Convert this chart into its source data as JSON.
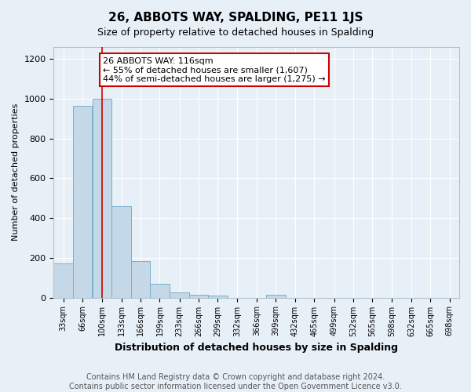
{
  "title": "26, ABBOTS WAY, SPALDING, PE11 1JS",
  "subtitle": "Size of property relative to detached houses in Spalding",
  "xlabel": "Distribution of detached houses by size in Spalding",
  "ylabel": "Number of detached properties",
  "bin_left_edges": [
    33,
    66,
    100,
    133,
    166,
    199,
    233,
    266,
    299,
    332,
    366,
    399,
    432,
    465,
    499,
    532,
    565,
    598,
    632,
    665,
    698
  ],
  "bar_heights": [
    170,
    965,
    1000,
    460,
    185,
    70,
    25,
    15,
    10,
    0,
    0,
    15,
    0,
    0,
    0,
    0,
    0,
    0,
    0,
    0
  ],
  "bar_color": "#c5d8e8",
  "bar_edge_color": "#7ab0cc",
  "vline_x": 116,
  "vline_color": "#cc0000",
  "annotation_text": "26 ABBOTS WAY: 116sqm\n← 55% of detached houses are smaller (1,607)\n44% of semi-detached houses are larger (1,275) →",
  "annotation_box_facecolor": "#ffffff",
  "annotation_box_edgecolor": "#cc0000",
  "ylim": [
    0,
    1260
  ],
  "yticks": [
    0,
    200,
    400,
    600,
    800,
    1000,
    1200
  ],
  "tick_labels": [
    "33sqm",
    "66sqm",
    "100sqm",
    "133sqm",
    "166sqm",
    "199sqm",
    "233sqm",
    "266sqm",
    "299sqm",
    "332sqm",
    "366sqm",
    "399sqm",
    "432sqm",
    "465sqm",
    "499sqm",
    "532sqm",
    "565sqm",
    "598sqm",
    "632sqm",
    "665sqm",
    "698sqm"
  ],
  "footer_text": "Contains HM Land Registry data © Crown copyright and database right 2024.\nContains public sector information licensed under the Open Government Licence v3.0.",
  "background_color": "#e8f0f7",
  "plot_bg_color": "#e8f0f7",
  "grid_color": "#ffffff",
  "title_fontsize": 11,
  "subtitle_fontsize": 9,
  "xlabel_fontsize": 9,
  "ylabel_fontsize": 8,
  "annotation_fontsize": 8,
  "footer_fontsize": 7,
  "tick_fontsize": 7,
  "ytick_fontsize": 8
}
